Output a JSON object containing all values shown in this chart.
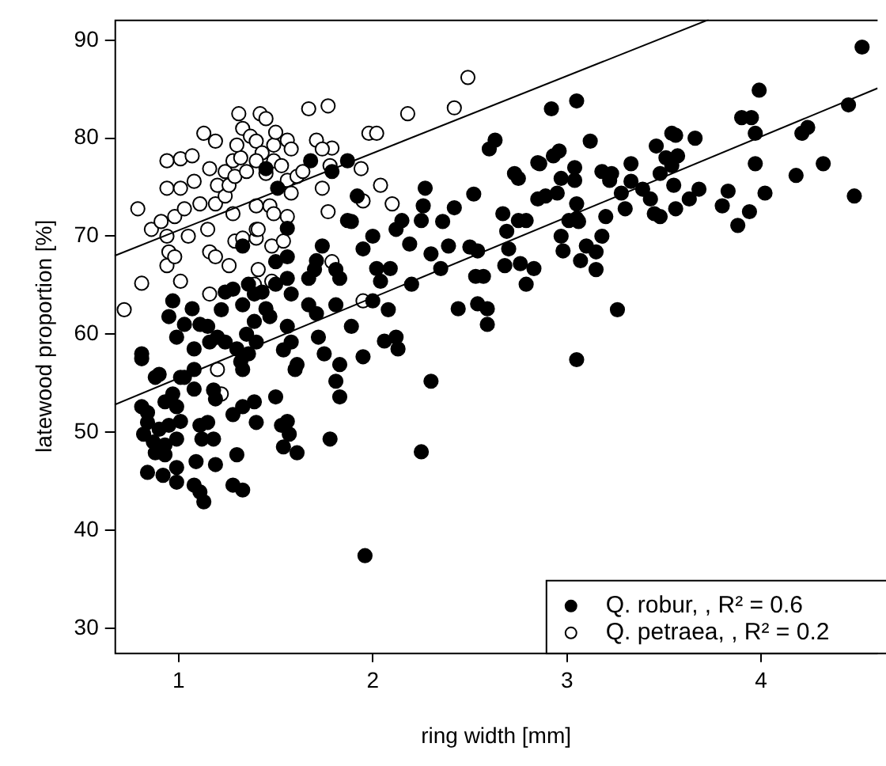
{
  "chart_data": {
    "type": "scatter",
    "xlabel": "ring width [mm]",
    "ylabel": "latewood proportion [%]",
    "xlim": [
      0.67,
      4.6
    ],
    "ylim": [
      27.5,
      92.1
    ],
    "xticks": [
      1,
      2,
      3,
      4
    ],
    "yticks": [
      30,
      40,
      50,
      60,
      70,
      80,
      90
    ],
    "grid": false,
    "legend": "bottom right",
    "series": [
      {
        "name": "Q. robur, , R² = 0.6",
        "color": "#000000",
        "marker": "circle",
        "x": [
          1.45,
          1.51,
          1.68,
          1.87,
          1.79,
          1.92,
          1.87,
          1.89,
          1.56,
          1.33,
          1.56,
          1.5,
          1.74,
          1.71,
          1.7,
          1.67,
          1.81,
          1.83,
          1.95,
          2.0,
          2.12,
          2.15,
          2.19,
          2.09,
          2.02,
          2.04,
          2.2,
          1.5,
          1.56,
          1.58,
          1.43,
          1.36,
          1.39,
          1.28,
          1.24,
          1.22,
          1.33,
          1.45,
          1.47,
          1.67,
          1.71,
          1.81,
          2.08,
          1.89,
          2.0,
          0.97,
          0.95,
          1.07,
          1.03,
          1.11,
          1.15,
          0.99,
          1.08,
          1.16,
          1.2,
          1.24,
          1.3,
          1.35,
          1.39,
          1.36,
          1.32,
          1.4,
          1.56,
          1.54,
          1.58,
          1.61,
          1.72,
          1.75,
          1.83,
          2.06,
          2.12,
          2.13,
          0.81,
          0.81,
          0.9,
          1.01,
          1.08,
          1.33,
          1.6,
          1.95,
          0.88,
          1.03,
          1.08,
          1.18,
          1.19,
          0.81,
          0.84,
          0.93,
          0.97,
          0.99,
          1.28,
          1.33,
          1.39,
          1.4,
          1.5,
          1.53,
          1.56,
          1.57,
          1.54,
          1.61,
          1.81,
          1.83,
          1.78,
          1.01,
          0.84,
          0.82,
          0.9,
          0.95,
          0.87,
          0.93,
          0.88,
          0.93,
          0.99,
          1.11,
          1.15,
          1.12,
          1.18,
          1.09,
          1.19,
          1.3,
          0.84,
          0.92,
          0.99,
          0.99,
          1.08,
          1.11,
          1.13,
          1.28,
          1.33,
          1.96,
          2.25,
          2.3,
          4.52,
          3.99,
          3.9,
          3.95,
          3.97,
          4.45,
          4.21,
          4.24,
          4.32,
          4.18,
          4.48,
          3.97,
          4.02,
          3.94,
          3.88,
          3.83,
          3.8,
          3.66,
          3.56,
          3.54,
          3.46,
          3.51,
          3.57,
          3.54,
          3.48,
          3.55,
          3.68,
          3.63,
          3.56,
          3.48,
          3.45,
          3.43,
          3.39,
          3.33,
          3.33,
          3.3,
          3.28,
          3.23,
          3.18,
          3.22,
          3.12,
          3.05,
          2.92,
          2.96,
          2.93,
          2.85,
          3.04,
          3.04,
          2.97,
          2.95,
          3.05,
          3.05,
          3.01,
          3.06,
          2.97,
          2.98,
          3.07,
          3.1,
          3.15,
          3.18,
          3.15,
          3.2,
          3.26,
          3.05,
          2.89,
          2.85,
          2.86,
          2.79,
          2.75,
          2.69,
          2.67,
          2.75,
          2.73,
          2.7,
          2.68,
          2.76,
          2.83,
          2.79,
          2.52,
          2.6,
          2.63,
          2.42,
          2.36,
          2.27,
          2.26,
          2.25,
          2.3,
          2.39,
          2.35,
          2.5,
          2.54,
          2.53,
          2.57,
          2.44,
          2.54,
          2.59,
          2.59
        ],
        "values": [
          76.9,
          74.9,
          77.7,
          77.7,
          76.6,
          74.1,
          71.6,
          71.5,
          70.8,
          69.0,
          67.9,
          67.4,
          69.0,
          67.5,
          66.6,
          65.7,
          66.6,
          65.7,
          68.7,
          70.0,
          70.7,
          71.6,
          69.2,
          66.7,
          66.7,
          65.4,
          65.1,
          65.1,
          65.7,
          64.1,
          64.3,
          65.1,
          64.1,
          64.6,
          64.3,
          62.5,
          63.0,
          62.6,
          61.8,
          63.0,
          62.1,
          63.0,
          62.5,
          60.8,
          63.4,
          63.4,
          61.8,
          62.6,
          61.0,
          61.0,
          60.8,
          59.7,
          58.5,
          59.2,
          59.7,
          59.2,
          58.5,
          60.0,
          61.3,
          58.0,
          57.2,
          59.2,
          60.8,
          58.4,
          59.2,
          56.9,
          59.7,
          58.0,
          56.9,
          59.3,
          59.7,
          58.5,
          58.0,
          57.5,
          55.9,
          55.6,
          56.4,
          56.4,
          56.4,
          57.7,
          55.6,
          55.6,
          54.4,
          54.3,
          53.4,
          52.6,
          52.0,
          53.1,
          53.9,
          52.6,
          51.8,
          52.6,
          53.1,
          51.0,
          53.6,
          50.7,
          51.1,
          49.8,
          48.5,
          47.9,
          55.2,
          53.6,
          49.3,
          51.1,
          51.0,
          49.8,
          50.3,
          50.7,
          49.0,
          48.7,
          47.9,
          47.7,
          49.3,
          50.7,
          51.0,
          49.3,
          49.3,
          47.0,
          46.7,
          47.7,
          45.9,
          45.6,
          46.4,
          44.9,
          44.6,
          43.9,
          42.9,
          44.6,
          44.1,
          37.4,
          48.0,
          55.2,
          89.3,
          84.9,
          82.1,
          82.1,
          80.5,
          83.4,
          80.5,
          81.1,
          77.4,
          76.2,
          74.1,
          77.4,
          74.4,
          72.5,
          71.1,
          74.6,
          73.1,
          80.0,
          80.3,
          80.5,
          79.2,
          78.0,
          78.2,
          77.2,
          76.4,
          75.2,
          74.8,
          73.8,
          72.8,
          72.0,
          72.3,
          73.8,
          74.8,
          77.4,
          75.6,
          72.8,
          74.4,
          76.4,
          76.6,
          75.7,
          79.7,
          83.8,
          83.0,
          78.7,
          78.2,
          77.5,
          77.0,
          75.7,
          75.9,
          74.4,
          73.3,
          71.8,
          71.6,
          71.5,
          70.0,
          68.5,
          67.5,
          69.0,
          68.4,
          70.0,
          66.6,
          72.0,
          62.5,
          57.4,
          74.1,
          73.8,
          77.4,
          71.6,
          71.6,
          70.5,
          72.3,
          75.9,
          76.4,
          68.7,
          67.0,
          67.2,
          66.7,
          65.1,
          74.3,
          78.9,
          79.8,
          72.9,
          71.5,
          74.9,
          73.1,
          71.6,
          68.2,
          69.0,
          66.7,
          68.9,
          68.5,
          65.9,
          65.9,
          62.6,
          63.1,
          62.6,
          61.0
        ]
      },
      {
        "name": "Q. petraea, , R² = 0.2",
        "color": "#ffffff",
        "marker": "circle",
        "x": [
          0.72,
          0.79,
          0.81,
          0.86,
          0.91,
          0.94,
          1.01,
          1.07,
          1.13,
          1.16,
          1.24,
          1.19,
          0.94,
          1.01,
          1.08,
          0.98,
          1.03,
          1.11,
          0.94,
          0.95,
          0.94,
          1.01,
          1.05,
          1.15,
          1.16,
          1.19,
          0.98,
          1.16,
          1.26,
          1.29,
          1.33,
          1.4,
          1.4,
          1.41,
          1.39,
          1.19,
          1.24,
          1.2,
          1.26,
          1.28,
          1.29,
          1.28,
          1.32,
          1.3,
          1.31,
          1.33,
          1.42,
          1.45,
          1.37,
          1.4,
          1.43,
          1.4,
          1.45,
          1.35,
          1.49,
          1.5,
          1.56,
          1.58,
          1.49,
          1.53,
          1.56,
          1.61,
          1.58,
          1.47,
          1.49,
          1.56,
          1.4,
          1.41,
          1.48,
          1.54,
          1.67,
          1.77,
          1.71,
          1.79,
          1.74,
          1.74,
          1.78,
          1.64,
          1.77,
          1.94,
          1.95,
          1.98,
          2.02,
          2.04,
          2.1,
          2.18,
          1.79,
          1.95,
          1.48,
          1.2,
          1.22,
          2.49,
          2.42
        ],
        "values": [
          62.5,
          72.8,
          65.2,
          70.7,
          71.5,
          77.7,
          77.9,
          78.2,
          80.5,
          76.9,
          76.6,
          79.7,
          74.9,
          74.9,
          75.6,
          72.0,
          72.8,
          73.3,
          70.0,
          68.4,
          67.0,
          65.4,
          70.0,
          70.7,
          68.4,
          67.9,
          67.9,
          64.1,
          67.0,
          69.5,
          69.8,
          69.8,
          70.7,
          66.6,
          65.1,
          73.3,
          74.1,
          75.2,
          75.2,
          72.3,
          76.1,
          77.7,
          78.0,
          79.3,
          82.5,
          81.0,
          82.5,
          82.0,
          80.2,
          79.7,
          78.5,
          77.7,
          76.4,
          76.6,
          79.3,
          80.6,
          79.8,
          78.9,
          77.7,
          77.2,
          75.7,
          76.1,
          74.4,
          73.1,
          72.3,
          72.0,
          73.1,
          70.7,
          69.0,
          69.5,
          83.0,
          83.3,
          79.8,
          79.0,
          74.9,
          78.9,
          77.2,
          76.6,
          72.5,
          76.9,
          73.6,
          80.5,
          80.5,
          75.2,
          73.3,
          82.5,
          67.4,
          63.4,
          65.4,
          56.4,
          53.9,
          86.2,
          83.1
        ]
      },
      {
        "type": "line",
        "color": "#000000",
        "marker": "none",
        "x": [
          0.67,
          4.6
        ],
        "values": [
          52.8,
          85.1
        ]
      },
      {
        "type": "line",
        "color": "#000000",
        "marker": "none",
        "x": [
          0.67,
          3.73
        ],
        "values": [
          68.0,
          92.1
        ]
      }
    ]
  }
}
